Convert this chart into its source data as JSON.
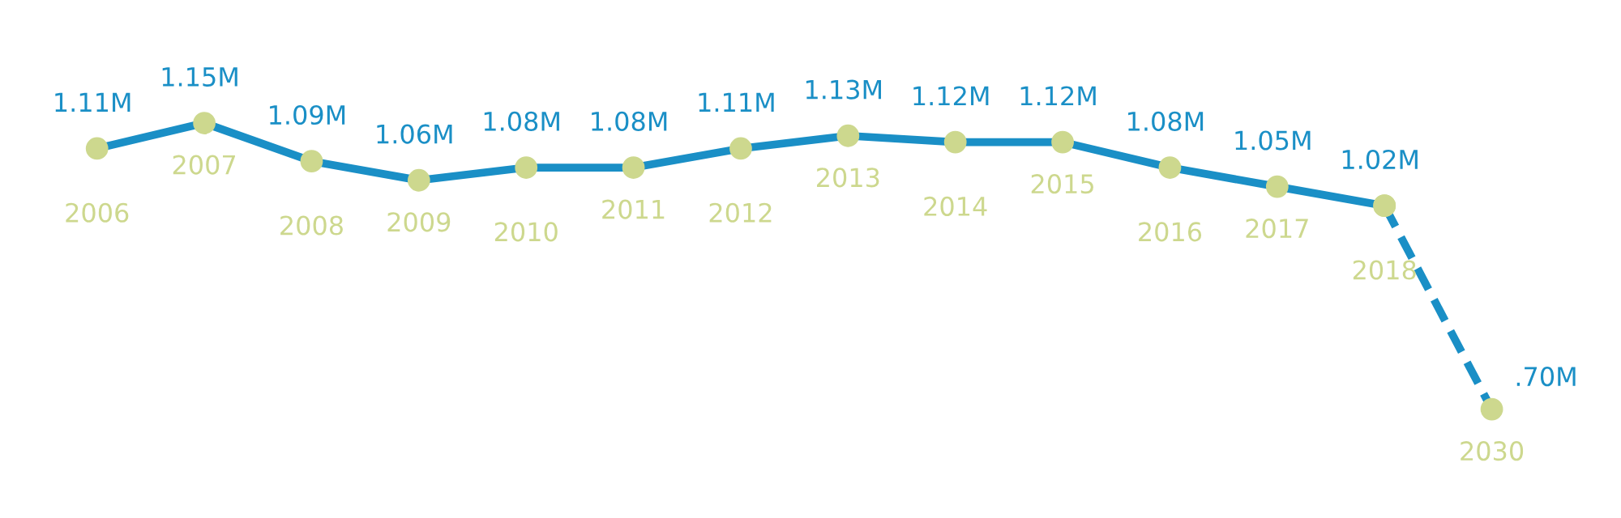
{
  "chart_data": {
    "type": "line",
    "categories": [
      "2006",
      "2007",
      "2008",
      "2009",
      "2010",
      "2011",
      "2012",
      "2013",
      "2014",
      "2015",
      "2016",
      "2017",
      "2018",
      "2030"
    ],
    "series": [
      {
        "color": "#1a8fc6",
        "line_style": "solid",
        "values": [
          1.11,
          1.15,
          1.09,
          1.06,
          1.08,
          1.08,
          1.11,
          1.13,
          1.12,
          1.12,
          1.08,
          1.05,
          1.02,
          null
        ],
        "value_labels": [
          "1.11M",
          "1.15M",
          "1.09M",
          "1.06M",
          "1.08M",
          "1.08M",
          "1.11M",
          "1.13M",
          "1.12M",
          "1.12M",
          "1.08M",
          "1.05M",
          "1.02M",
          null
        ]
      },
      {
        "color": "#1a8fc6",
        "line_style": "dashed",
        "values": [
          null,
          null,
          null,
          null,
          null,
          null,
          null,
          null,
          null,
          null,
          null,
          null,
          1.02,
          0.7
        ],
        "value_labels": [
          null,
          null,
          null,
          null,
          null,
          null,
          null,
          null,
          null,
          null,
          null,
          null,
          null,
          ".70M"
        ]
      }
    ],
    "marker": "circle"
  }
}
